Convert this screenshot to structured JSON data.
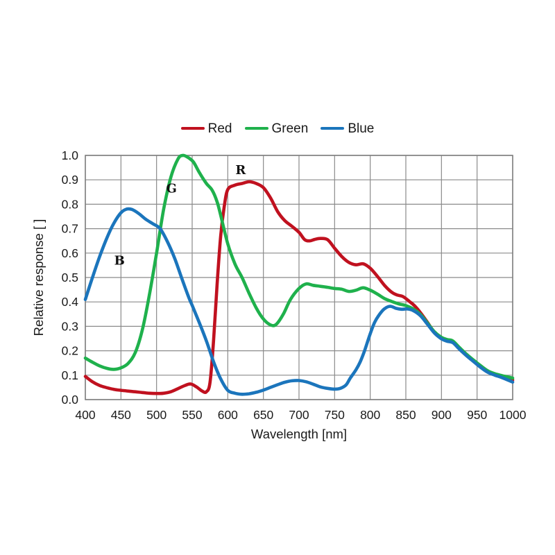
{
  "page": {
    "background": "#ffffff"
  },
  "legend": {
    "items": [
      "Red",
      "Green",
      "Blue"
    ]
  },
  "chart_data": {
    "type": "line",
    "xlabel": "Wavelength [nm]",
    "ylabel": "Relative response [ ]",
    "xlim": [
      400,
      1000
    ],
    "ylim": [
      0.0,
      1.0
    ],
    "x_ticks": [
      400,
      450,
      500,
      550,
      600,
      650,
      700,
      750,
      800,
      850,
      900,
      950,
      1000
    ],
    "y_ticks": [
      0.0,
      0.1,
      0.2,
      0.3,
      0.4,
      0.5,
      0.6,
      0.7,
      0.8,
      0.9,
      1.0
    ],
    "grid": true,
    "legend_position": "top-center",
    "colors": {
      "grid": "#8a8a8a",
      "border": "#7f7f7f",
      "text": "#1a1a1a"
    },
    "annotations": [
      {
        "label": "R",
        "x": 618,
        "y": 0.94
      },
      {
        "label": "G",
        "x": 521,
        "y": 0.865
      },
      {
        "label": "B",
        "x": 448,
        "y": 0.57
      }
    ],
    "series": [
      {
        "name": "Red",
        "color": "#c0111f",
        "points": [
          [
            400,
            0.095
          ],
          [
            410,
            0.073
          ],
          [
            420,
            0.058
          ],
          [
            430,
            0.049
          ],
          [
            440,
            0.042
          ],
          [
            450,
            0.038
          ],
          [
            460,
            0.035
          ],
          [
            470,
            0.032
          ],
          [
            480,
            0.029
          ],
          [
            490,
            0.026
          ],
          [
            500,
            0.025
          ],
          [
            510,
            0.026
          ],
          [
            520,
            0.032
          ],
          [
            530,
            0.045
          ],
          [
            540,
            0.058
          ],
          [
            548,
            0.064
          ],
          [
            556,
            0.052
          ],
          [
            564,
            0.035
          ],
          [
            570,
            0.032
          ],
          [
            575,
            0.07
          ],
          [
            580,
            0.24
          ],
          [
            585,
            0.47
          ],
          [
            590,
            0.67
          ],
          [
            595,
            0.79
          ],
          [
            600,
            0.86
          ],
          [
            610,
            0.878
          ],
          [
            620,
            0.885
          ],
          [
            630,
            0.892
          ],
          [
            640,
            0.885
          ],
          [
            650,
            0.868
          ],
          [
            660,
            0.826
          ],
          [
            670,
            0.77
          ],
          [
            680,
            0.733
          ],
          [
            690,
            0.71
          ],
          [
            700,
            0.685
          ],
          [
            708,
            0.655
          ],
          [
            715,
            0.65
          ],
          [
            722,
            0.656
          ],
          [
            730,
            0.66
          ],
          [
            740,
            0.655
          ],
          [
            750,
            0.62
          ],
          [
            760,
            0.586
          ],
          [
            770,
            0.562
          ],
          [
            780,
            0.552
          ],
          [
            790,
            0.556
          ],
          [
            800,
            0.538
          ],
          [
            810,
            0.505
          ],
          [
            820,
            0.468
          ],
          [
            830,
            0.44
          ],
          [
            838,
            0.428
          ],
          [
            846,
            0.422
          ],
          [
            855,
            0.402
          ],
          [
            862,
            0.385
          ],
          [
            870,
            0.358
          ],
          [
            880,
            0.318
          ],
          [
            890,
            0.276
          ],
          [
            900,
            0.252
          ],
          [
            908,
            0.242
          ],
          [
            916,
            0.236
          ],
          [
            925,
            0.21
          ],
          [
            935,
            0.183
          ],
          [
            945,
            0.158
          ],
          [
            955,
            0.135
          ],
          [
            965,
            0.115
          ],
          [
            975,
            0.103
          ],
          [
            985,
            0.094
          ],
          [
            1000,
            0.08
          ]
        ]
      },
      {
        "name": "Green",
        "color": "#1fb14c",
        "points": [
          [
            400,
            0.17
          ],
          [
            410,
            0.153
          ],
          [
            420,
            0.138
          ],
          [
            430,
            0.128
          ],
          [
            440,
            0.124
          ],
          [
            450,
            0.13
          ],
          [
            460,
            0.148
          ],
          [
            470,
            0.192
          ],
          [
            480,
            0.285
          ],
          [
            490,
            0.43
          ],
          [
            500,
            0.6
          ],
          [
            510,
            0.78
          ],
          [
            520,
            0.91
          ],
          [
            530,
            0.985
          ],
          [
            537,
            1.0
          ],
          [
            545,
            0.99
          ],
          [
            552,
            0.972
          ],
          [
            560,
            0.93
          ],
          [
            570,
            0.885
          ],
          [
            578,
            0.858
          ],
          [
            585,
            0.81
          ],
          [
            590,
            0.755
          ],
          [
            600,
            0.638
          ],
          [
            610,
            0.556
          ],
          [
            620,
            0.5
          ],
          [
            630,
            0.435
          ],
          [
            640,
            0.375
          ],
          [
            650,
            0.33
          ],
          [
            660,
            0.306
          ],
          [
            668,
            0.308
          ],
          [
            678,
            0.35
          ],
          [
            688,
            0.41
          ],
          [
            700,
            0.455
          ],
          [
            710,
            0.474
          ],
          [
            720,
            0.468
          ],
          [
            730,
            0.464
          ],
          [
            740,
            0.46
          ],
          [
            750,
            0.455
          ],
          [
            760,
            0.452
          ],
          [
            770,
            0.443
          ],
          [
            780,
            0.448
          ],
          [
            790,
            0.458
          ],
          [
            800,
            0.448
          ],
          [
            810,
            0.432
          ],
          [
            820,
            0.414
          ],
          [
            830,
            0.402
          ],
          [
            840,
            0.392
          ],
          [
            850,
            0.385
          ],
          [
            860,
            0.372
          ],
          [
            870,
            0.35
          ],
          [
            880,
            0.315
          ],
          [
            890,
            0.278
          ],
          [
            900,
            0.255
          ],
          [
            908,
            0.246
          ],
          [
            916,
            0.24
          ],
          [
            925,
            0.214
          ],
          [
            935,
            0.186
          ],
          [
            945,
            0.162
          ],
          [
            955,
            0.139
          ],
          [
            965,
            0.118
          ],
          [
            975,
            0.106
          ],
          [
            985,
            0.098
          ],
          [
            1000,
            0.088
          ]
        ]
      },
      {
        "name": "Blue",
        "color": "#1b75bc",
        "points": [
          [
            400,
            0.41
          ],
          [
            410,
            0.5
          ],
          [
            420,
            0.585
          ],
          [
            430,
            0.66
          ],
          [
            440,
            0.722
          ],
          [
            450,
            0.765
          ],
          [
            458,
            0.78
          ],
          [
            466,
            0.778
          ],
          [
            475,
            0.762
          ],
          [
            485,
            0.738
          ],
          [
            495,
            0.72
          ],
          [
            505,
            0.7
          ],
          [
            515,
            0.648
          ],
          [
            525,
            0.582
          ],
          [
            535,
            0.5
          ],
          [
            545,
            0.42
          ],
          [
            550,
            0.386
          ],
          [
            560,
            0.315
          ],
          [
            570,
            0.24
          ],
          [
            580,
            0.155
          ],
          [
            590,
            0.085
          ],
          [
            600,
            0.038
          ],
          [
            610,
            0.026
          ],
          [
            620,
            0.022
          ],
          [
            630,
            0.024
          ],
          [
            640,
            0.03
          ],
          [
            650,
            0.039
          ],
          [
            660,
            0.05
          ],
          [
            670,
            0.061
          ],
          [
            680,
            0.071
          ],
          [
            690,
            0.077
          ],
          [
            700,
            0.078
          ],
          [
            710,
            0.073
          ],
          [
            720,
            0.063
          ],
          [
            730,
            0.052
          ],
          [
            740,
            0.046
          ],
          [
            750,
            0.043
          ],
          [
            758,
            0.046
          ],
          [
            766,
            0.06
          ],
          [
            772,
            0.088
          ],
          [
            780,
            0.122
          ],
          [
            786,
            0.155
          ],
          [
            792,
            0.2
          ],
          [
            800,
            0.27
          ],
          [
            806,
            0.315
          ],
          [
            812,
            0.345
          ],
          [
            820,
            0.372
          ],
          [
            828,
            0.382
          ],
          [
            836,
            0.374
          ],
          [
            844,
            0.37
          ],
          [
            852,
            0.371
          ],
          [
            860,
            0.365
          ],
          [
            870,
            0.345
          ],
          [
            880,
            0.31
          ],
          [
            890,
            0.273
          ],
          [
            900,
            0.249
          ],
          [
            908,
            0.239
          ],
          [
            916,
            0.233
          ],
          [
            925,
            0.207
          ],
          [
            935,
            0.18
          ],
          [
            945,
            0.156
          ],
          [
            955,
            0.132
          ],
          [
            965,
            0.112
          ],
          [
            975,
            0.1
          ],
          [
            985,
            0.09
          ],
          [
            1000,
            0.072
          ]
        ]
      }
    ]
  }
}
